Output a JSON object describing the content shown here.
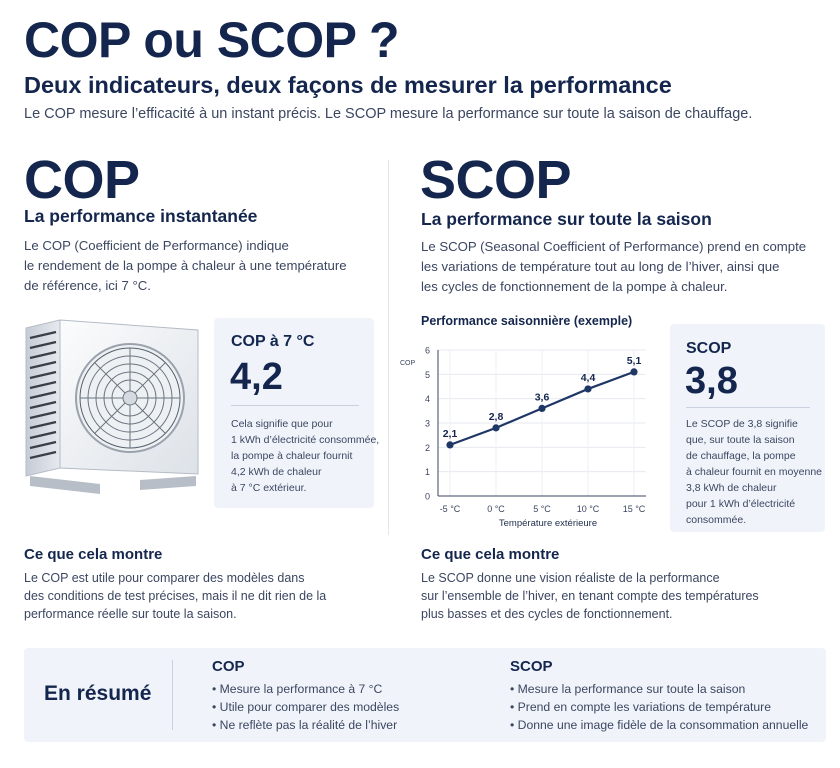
{
  "header": {
    "title": "COP ou SCOP ?",
    "subtitle": "Deux indicateurs, deux façons de mesurer la performance",
    "intro": "Le COP mesure l’efficacité à un instant précis. Le SCOP mesure la performance sur toute la saison de chauffage."
  },
  "cop": {
    "heading": "COP",
    "subheading": "La performance instantanée",
    "description": [
      "Le COP (Coefficient de Performance) indique",
      "le rendement de la pompe à chaleur à une température",
      "de référence, ici 7 °C."
    ],
    "card": {
      "title": "COP à 7 °C",
      "value": "4,2",
      "text": [
        "Cela signifie que pour",
        "1 kWh d’électricité consommée,",
        "la pompe à chaleur fournit",
        "4,2 kWh de chaleur",
        "à 7 °C extérieur."
      ]
    },
    "shows_title": "Ce que cela montre",
    "shows_text": [
      "Le COP est utile pour comparer des modèles dans",
      "des conditions de test précises, mais il ne dit rien de la",
      "performance réelle sur toute la saison."
    ]
  },
  "scop": {
    "heading": "SCOP",
    "subheading": "La performance sur toute la saison",
    "description": [
      "Le SCOP (Seasonal Coefficient of Performance) prend en compte",
      "les variations de température tout au long de l’hiver, ainsi que",
      "les cycles de fonctionnement de la pompe à chaleur."
    ],
    "card": {
      "title": "SCOP",
      "value": "3,8",
      "text": [
        "Le SCOP de 3,8 signifie",
        "que, sur toute la saison",
        "de chauffage, la pompe",
        "à chaleur fournit en moyenne",
        "3,8 kWh de chaleur",
        "pour 1 kWh d’électricité",
        "consommée."
      ]
    },
    "shows_title": "Ce que cela montre",
    "shows_text": [
      "Le SCOP donne une vision réaliste de la performance",
      "sur l’ensemble de l’hiver, en tenant compte des températures",
      "plus basses et des cycles de fonctionnement."
    ]
  },
  "chart_data": {
    "type": "line",
    "title": "Performance saisonnière (exemple)",
    "xlabel": "Température extérieure",
    "ylabel": "COP",
    "categories": [
      "-5 °C",
      "0 °C",
      "5 °C",
      "10 °C",
      "15 °C"
    ],
    "values": [
      2.1,
      2.8,
      3.6,
      4.4,
      5.1
    ],
    "value_labels": [
      "2,1",
      "2,8",
      "3,6",
      "4,4",
      "5,1"
    ],
    "ylim": [
      0,
      6
    ],
    "yticks": [
      "0",
      "1",
      "2",
      "3",
      "4",
      "5",
      "6"
    ],
    "grid": true,
    "color": "#1f3766"
  },
  "summary": {
    "title": "En résumé",
    "cop": {
      "title": "COP",
      "items": [
        "Mesure la performance à 7 °C",
        "Utile pour comparer des modèles",
        "Ne reflète pas la réalité de l’hiver"
      ]
    },
    "scop": {
      "title": "SCOP",
      "items": [
        "Mesure la performance sur toute la saison",
        "Prend en compte les variations de température",
        "Donne une image fidèle de la consommation annuelle"
      ]
    }
  }
}
